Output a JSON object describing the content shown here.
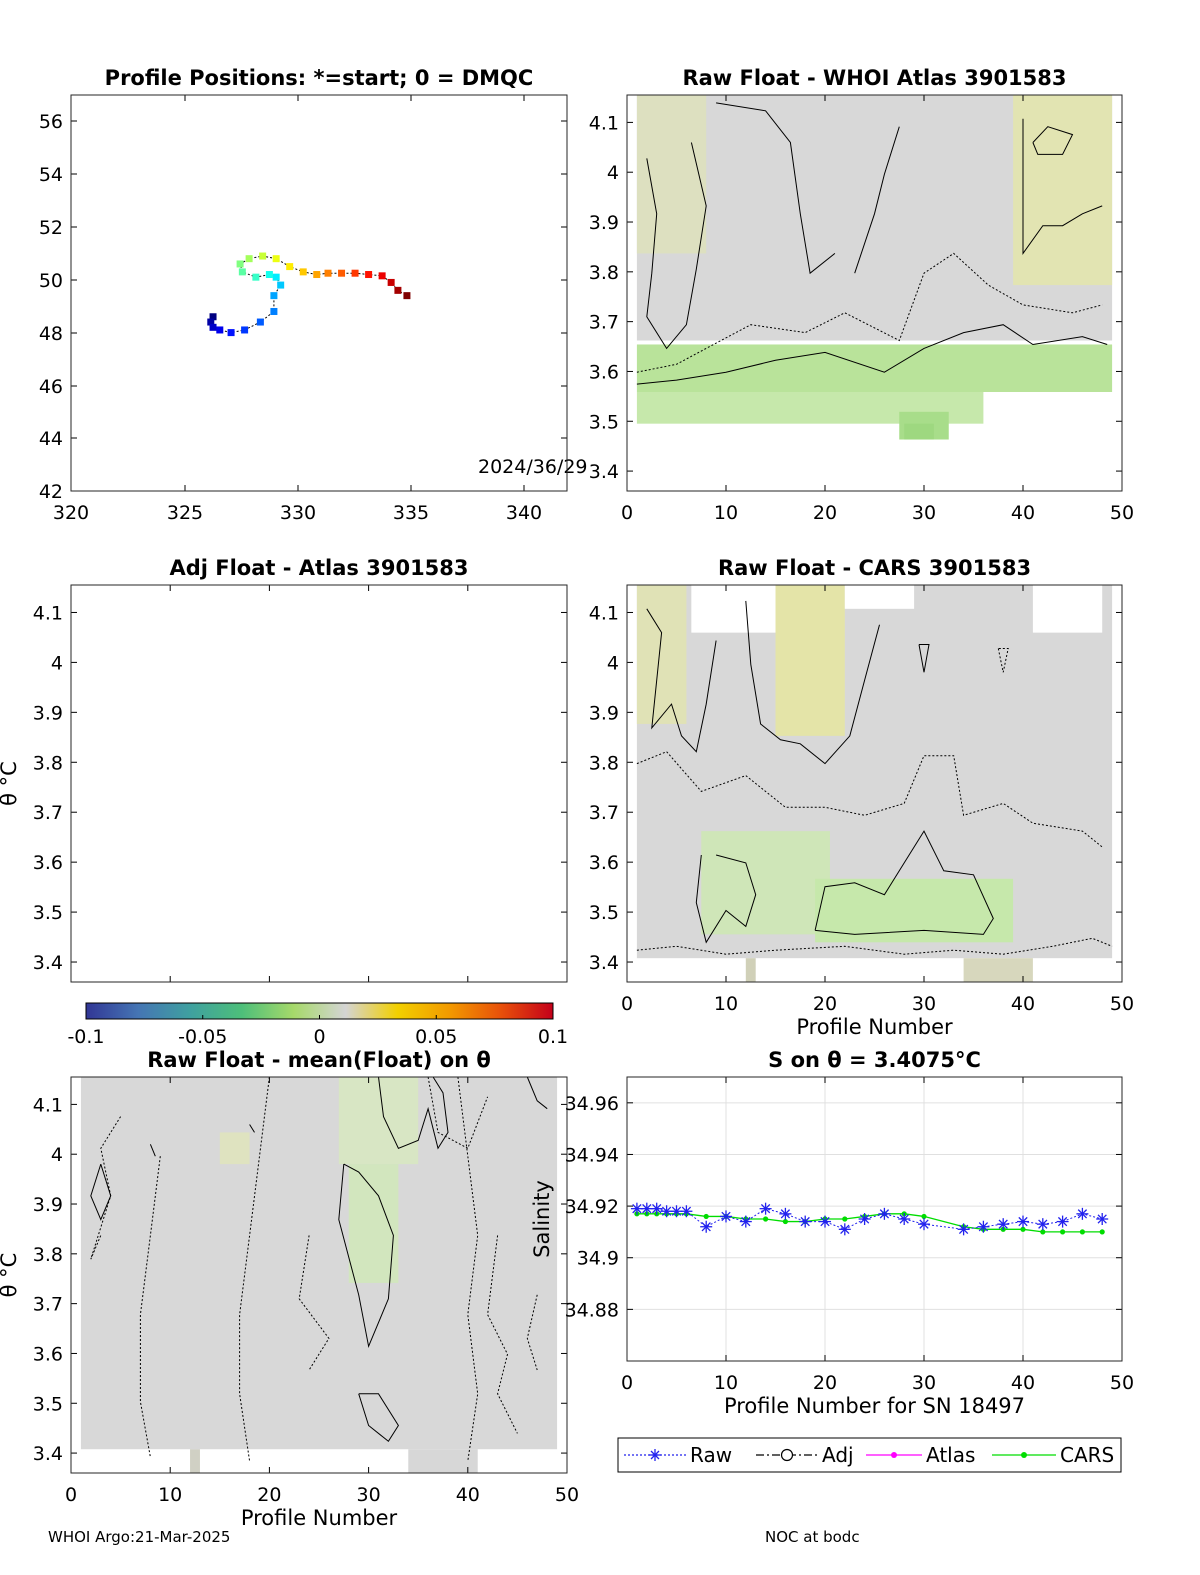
{
  "footer": {
    "left": "WHOI Argo:21-Mar-2025",
    "right": "NOC at bodc"
  },
  "colors": {
    "grey": "#d8d8d8",
    "green": "#b9e39a",
    "yellow": "#e2e4b2",
    "atlas": "#ff00ff",
    "cars": "#00dd00",
    "raw": "#2222ee"
  },
  "chart_data": [
    {
      "id": "positions",
      "type": "scatter",
      "title": "Profile Positions: *=start; 0 = DMQC",
      "xlim": [
        320,
        342
      ],
      "ylim": [
        42,
        57
      ],
      "xticks": [
        "320",
        "325",
        "330",
        "335",
        "340"
      ],
      "yticks": [
        "42",
        "44",
        "46",
        "48",
        "50",
        "52",
        "54",
        "56"
      ],
      "annotation": "2024/36/29",
      "colormap": "jet",
      "points": [
        {
          "x": 326.3,
          "y": 48.6
        },
        {
          "x": 326.2,
          "y": 48.4
        },
        {
          "x": 326.3,
          "y": 48.2
        },
        {
          "x": 326.6,
          "y": 48.1
        },
        {
          "x": 327.1,
          "y": 48.0
        },
        {
          "x": 327.7,
          "y": 48.1
        },
        {
          "x": 328.4,
          "y": 48.4
        },
        {
          "x": 329.0,
          "y": 48.8
        },
        {
          "x": 329.0,
          "y": 49.4
        },
        {
          "x": 329.3,
          "y": 49.8
        },
        {
          "x": 329.1,
          "y": 50.1
        },
        {
          "x": 328.8,
          "y": 50.2
        },
        {
          "x": 328.2,
          "y": 50.1
        },
        {
          "x": 327.6,
          "y": 50.3
        },
        {
          "x": 327.5,
          "y": 50.6
        },
        {
          "x": 327.9,
          "y": 50.8
        },
        {
          "x": 328.5,
          "y": 50.9
        },
        {
          "x": 329.1,
          "y": 50.8
        },
        {
          "x": 329.7,
          "y": 50.5
        },
        {
          "x": 330.3,
          "y": 50.3
        },
        {
          "x": 330.9,
          "y": 50.2
        },
        {
          "x": 331.4,
          "y": 50.25
        },
        {
          "x": 332.0,
          "y": 50.25
        },
        {
          "x": 332.6,
          "y": 50.25
        },
        {
          "x": 333.2,
          "y": 50.2
        },
        {
          "x": 333.8,
          "y": 50.15
        },
        {
          "x": 334.2,
          "y": 49.9
        },
        {
          "x": 334.5,
          "y": 49.6
        },
        {
          "x": 334.9,
          "y": 49.4
        }
      ]
    },
    {
      "id": "whoi",
      "type": "heatmap",
      "title": "Raw Float - WHOI Atlas  3901583",
      "xlim": [
        0,
        50
      ],
      "ylim": [
        3.36,
        4.155
      ],
      "xticks": [
        "0",
        "10",
        "20",
        "30",
        "40",
        "50"
      ],
      "yticks": [
        "3.4",
        "3.5",
        "3.6",
        "3.7",
        "3.8",
        "3.9",
        "4",
        "4.1"
      ],
      "xlabel": "",
      "ylabel": ""
    },
    {
      "id": "adj",
      "type": "heatmap",
      "title": "Adj Float - Atlas  3901583",
      "xlim": [
        0,
        50
      ],
      "ylim": [
        3.36,
        4.155
      ],
      "yticks": [
        "3.4",
        "3.5",
        "3.6",
        "3.7",
        "3.8",
        "3.9",
        "4",
        "4.1"
      ],
      "ylabel": "θ °C"
    },
    {
      "id": "cars",
      "type": "heatmap",
      "title": "Raw Float - CARS  3901583",
      "xlim": [
        0,
        50
      ],
      "ylim": [
        3.36,
        4.155
      ],
      "xticks": [
        "0",
        "10",
        "20",
        "30",
        "40",
        "50"
      ],
      "yticks": [
        "3.4",
        "3.5",
        "3.6",
        "3.7",
        "3.8",
        "3.9",
        "4",
        "4.1"
      ],
      "xlabel": "Profile Number"
    },
    {
      "id": "colorbar",
      "type": "heatmap",
      "range": [
        -0.1,
        0.1
      ],
      "ticks": [
        "-0.1",
        "-0.05",
        "0",
        "0.05",
        "0.1"
      ]
    },
    {
      "id": "mean",
      "type": "heatmap",
      "title": "Raw Float - mean(Float) on θ",
      "xlim": [
        0,
        50
      ],
      "ylim": [
        3.36,
        4.155
      ],
      "xticks": [
        "0",
        "10",
        "20",
        "30",
        "40",
        "50"
      ],
      "yticks": [
        "3.4",
        "3.5",
        "3.6",
        "3.7",
        "3.8",
        "3.9",
        "4",
        "4.1"
      ],
      "xlabel": "Profile Number",
      "ylabel": "θ °C"
    },
    {
      "id": "salinity",
      "type": "line",
      "title": "S on θ = 3.4075°C",
      "xlim": [
        0,
        50
      ],
      "ylim": [
        34.86,
        34.97
      ],
      "xticks": [
        "0",
        "10",
        "20",
        "30",
        "40",
        "50"
      ],
      "yticks": [
        "34.88",
        "34.9",
        "34.92",
        "34.94",
        "34.96"
      ],
      "xlabel": "Profile Number for SN 18497",
      "ylabel": "Salinity",
      "grid": true,
      "legend_position": "bottom",
      "series": [
        {
          "name": "Raw",
          "marker": "asterisk",
          "x": [
            1,
            2,
            3,
            4,
            5,
            6,
            8,
            10,
            12,
            14,
            16,
            18,
            20,
            22,
            24,
            26,
            28,
            30,
            34,
            36,
            38,
            40,
            42,
            44,
            46,
            48
          ],
          "y": [
            34.919,
            34.919,
            34.919,
            34.918,
            34.918,
            34.918,
            34.912,
            34.916,
            34.914,
            34.919,
            34.917,
            34.914,
            34.914,
            34.911,
            34.915,
            34.917,
            34.915,
            34.913,
            34.911,
            34.912,
            34.913,
            34.914,
            34.913,
            34.914,
            34.917,
            34.915
          ]
        },
        {
          "name": "Adj",
          "marker": "circle",
          "x": [],
          "y": []
        },
        {
          "name": "Atlas",
          "marker": "dot",
          "x": [],
          "y": []
        },
        {
          "name": "CARS",
          "marker": "dot",
          "x": [
            1,
            2,
            3,
            4,
            5,
            6,
            8,
            10,
            12,
            14,
            16,
            18,
            20,
            22,
            24,
            26,
            28,
            30,
            34,
            36,
            38,
            40,
            42,
            44,
            46,
            48
          ],
          "y": [
            34.917,
            34.917,
            34.917,
            34.917,
            34.917,
            34.917,
            34.916,
            34.916,
            34.915,
            34.915,
            34.914,
            34.914,
            34.915,
            34.915,
            34.916,
            34.917,
            34.917,
            34.916,
            34.912,
            34.911,
            34.911,
            34.911,
            34.91,
            34.91,
            34.91,
            34.91
          ]
        }
      ]
    }
  ]
}
